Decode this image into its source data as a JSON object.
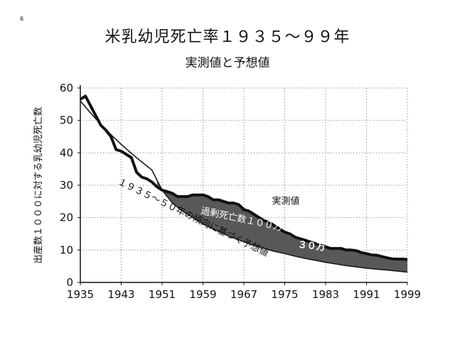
{
  "page_number": "6",
  "chart_data": {
    "type": "area",
    "title": "米乳幼児死亡率１９３５～９９年",
    "subtitle": "実測値と予想値",
    "xlabel": "",
    "ylabel": "出産数１０００に対する乳幼児死亡数",
    "xlim": [
      1935,
      1999
    ],
    "ylim": [
      0,
      60
    ],
    "x_ticks": [
      "1935",
      "1943",
      "1951",
      "1959",
      "1967",
      "1975",
      "1983",
      "1991",
      "1999"
    ],
    "y_ticks": [
      "0",
      "10",
      "20",
      "30",
      "40",
      "50",
      "60"
    ],
    "grid": true,
    "series": [
      {
        "name": "実測値",
        "x": [
          1935,
          1936,
          1937,
          1938,
          1939,
          1940,
          1941,
          1942,
          1943,
          1944,
          1945,
          1946,
          1947,
          1948,
          1949,
          1950,
          1951,
          1952,
          1953,
          1954,
          1955,
          1956,
          1957,
          1958,
          1959,
          1960,
          1961,
          1962,
          1963,
          1964,
          1965,
          1966,
          1967,
          1968,
          1969,
          1970,
          1971,
          1972,
          1973,
          1974,
          1975,
          1976,
          1977,
          1978,
          1979,
          1980,
          1981,
          1982,
          1983,
          1984,
          1985,
          1986,
          1987,
          1988,
          1989,
          1990,
          1991,
          1992,
          1993,
          1994,
          1995,
          1996,
          1997,
          1998,
          1999
        ],
        "values": [
          56.5,
          57.5,
          54.5,
          51.5,
          48.5,
          47.0,
          45.0,
          41.0,
          40.5,
          39.5,
          38.5,
          34.0,
          32.5,
          32.0,
          31.0,
          29.5,
          28.5,
          28.0,
          27.5,
          26.5,
          26.5,
          26.5,
          27.0,
          27.0,
          27.0,
          26.5,
          25.5,
          25.5,
          25.0,
          24.5,
          24.5,
          24.0,
          22.5,
          22.0,
          21.0,
          20.0,
          19.0,
          18.5,
          17.5,
          16.5,
          15.5,
          15.0,
          14.0,
          13.5,
          13.0,
          12.5,
          12.0,
          11.5,
          11.0,
          10.5,
          10.5,
          10.5,
          10.0,
          10.0,
          9.8,
          9.2,
          8.9,
          8.5,
          8.4,
          8.0,
          7.6,
          7.3,
          7.2,
          7.2,
          7.1
        ]
      },
      {
        "name": "１９３５～５０年の傾向に基づく予想値",
        "x": [
          1935,
          1937,
          1939,
          1941,
          1943,
          1945,
          1947,
          1949,
          1951,
          1953,
          1955,
          1957,
          1959,
          1961,
          1963,
          1965,
          1967,
          1969,
          1971,
          1973,
          1975,
          1977,
          1979,
          1981,
          1983,
          1985,
          1987,
          1989,
          1991,
          1993,
          1995,
          1997,
          1999
        ],
        "values": [
          56.0,
          52.3,
          48.8,
          45.6,
          42.6,
          39.8,
          37.2,
          34.7,
          28.5,
          24.5,
          22.0,
          20.0,
          18.0,
          16.5,
          15.0,
          13.7,
          12.5,
          11.4,
          10.5,
          9.6,
          8.9,
          8.1,
          7.4,
          6.8,
          6.2,
          5.7,
          5.2,
          4.8,
          4.4,
          4.1,
          3.8,
          3.5,
          3.2
        ]
      }
    ],
    "annotations": [
      "実測値",
      "過剰死亡数１００万",
      "３０万"
    ]
  }
}
